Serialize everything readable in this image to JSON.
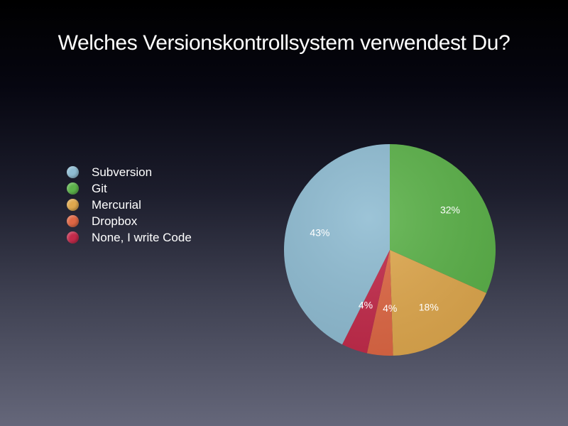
{
  "chart_data": {
    "type": "pie",
    "title": "Welches Versionskontrollsystem verwendest Du?",
    "legend_position": "left",
    "slices": [
      {
        "name": "Subversion",
        "value": 43,
        "label": "43%",
        "color": "#8fbcd2"
      },
      {
        "name": "Git",
        "value": 32,
        "label": "32%",
        "color": "#5cb24a"
      },
      {
        "name": "Mercurial",
        "value": 18,
        "label": "18%",
        "color": "#dfa84e"
      },
      {
        "name": "Dropbox",
        "value": 4,
        "label": "4%",
        "color": "#de6744"
      },
      {
        "name": "None, I write Code",
        "value": 4,
        "label": "4%",
        "color": "#c22a4a"
      }
    ]
  }
}
